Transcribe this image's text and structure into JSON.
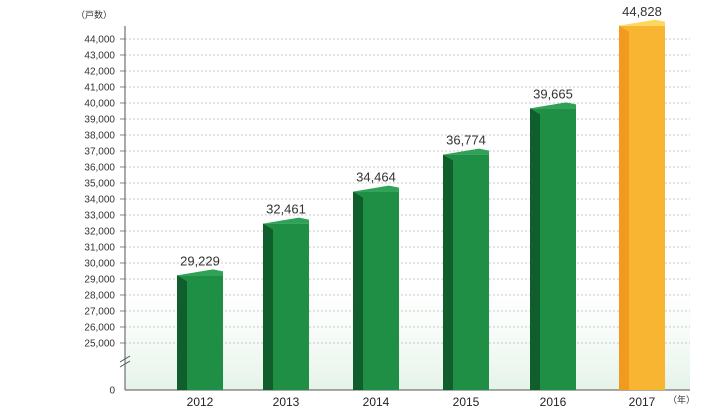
{
  "chart_data": {
    "type": "bar",
    "y_unit_label": "（戸数）",
    "x_unit_label": "（年）",
    "categories": [
      "2012",
      "2013",
      "2014",
      "2015",
      "2016",
      "2017"
    ],
    "values": [
      29229,
      32461,
      34464,
      36774,
      39665,
      44828
    ],
    "value_labels": [
      "29,229",
      "32,461",
      "34,464",
      "36,774",
      "39,665",
      "44,828"
    ],
    "highlight_index": 5,
    "y_ticks": [
      0,
      25000,
      26000,
      27000,
      28000,
      29000,
      30000,
      31000,
      32000,
      33000,
      34000,
      35000,
      36000,
      37000,
      38000,
      39000,
      40000,
      41000,
      42000,
      43000,
      44000
    ],
    "y_tick_labels": [
      "0",
      "25,000",
      "26,000",
      "27,000",
      "28,000",
      "29,000",
      "30,000",
      "31,000",
      "32,000",
      "33,000",
      "34,000",
      "35,000",
      "36,000",
      "37,000",
      "38,000",
      "39,000",
      "40,000",
      "41,000",
      "42,000",
      "43,000",
      "44,000"
    ],
    "axis_break": true,
    "grid": true,
    "colors": {
      "bar": "#1f8f45",
      "bar_side": "#0f5e2b",
      "bar_top": "#2fa257",
      "highlight": "#f7b531",
      "highlight_side": "#f29a1f",
      "highlight_top": "#ffd75c",
      "band": "#e4f3e8"
    }
  }
}
